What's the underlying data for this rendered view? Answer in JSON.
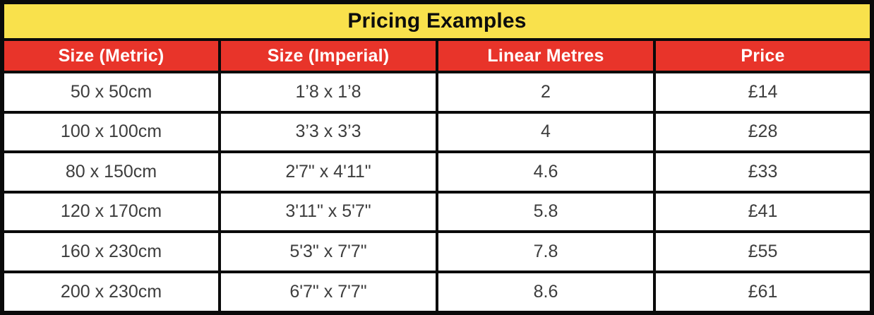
{
  "title": "Pricing Examples",
  "colors": {
    "title_bg": "#F9E14C",
    "header_bg": "#E8342A",
    "header_text": "#FFFFFF",
    "border": "#0A0A0A",
    "cell_text": "#3D3D3D"
  },
  "table": {
    "columns": [
      "Size (Metric)",
      "Size (Imperial)",
      "Linear Metres",
      "Price"
    ],
    "rows": [
      {
        "metric": "50 x 50cm",
        "imperial": "1’8 x 1’8",
        "linear_metres": "2",
        "price": "£14"
      },
      {
        "metric": "100 x 100cm",
        "imperial": "3’3 x 3’3",
        "linear_metres": "4",
        "price": "£28"
      },
      {
        "metric": "80 x 150cm",
        "imperial": "2'7\" x 4'11\"",
        "linear_metres": "4.6",
        "price": "£33"
      },
      {
        "metric": "120 x 170cm",
        "imperial": "3'11\" x 5'7\"",
        "linear_metres": "5.8",
        "price": "£41"
      },
      {
        "metric": "160 x 230cm",
        "imperial": "5'3\" x 7'7\"",
        "linear_metres": "7.8",
        "price": "£55"
      },
      {
        "metric": "200 x 230cm",
        "imperial": "6'7\" x 7'7\"",
        "linear_metres": "8.6",
        "price": "£61"
      }
    ]
  },
  "chart_data": {
    "type": "table",
    "title": "Pricing Examples",
    "columns": [
      "Size (Metric)",
      "Size (Imperial)",
      "Linear Metres",
      "Price"
    ],
    "rows": [
      [
        "50 x 50cm",
        "1’8 x 1’8",
        2,
        "£14"
      ],
      [
        "100 x 100cm",
        "3’3 x 3’3",
        4,
        "£28"
      ],
      [
        "80 x 150cm",
        "2'7\" x 4'11\"",
        4.6,
        "£33"
      ],
      [
        "120 x 170cm",
        "3'11\" x 5'7\"",
        5.8,
        "£41"
      ],
      [
        "160 x 230cm",
        "5'3\" x 7'7\"",
        7.8,
        "£55"
      ],
      [
        "200 x 230cm",
        "6'7\" x 7'7\"",
        8.6,
        "£61"
      ]
    ]
  }
}
